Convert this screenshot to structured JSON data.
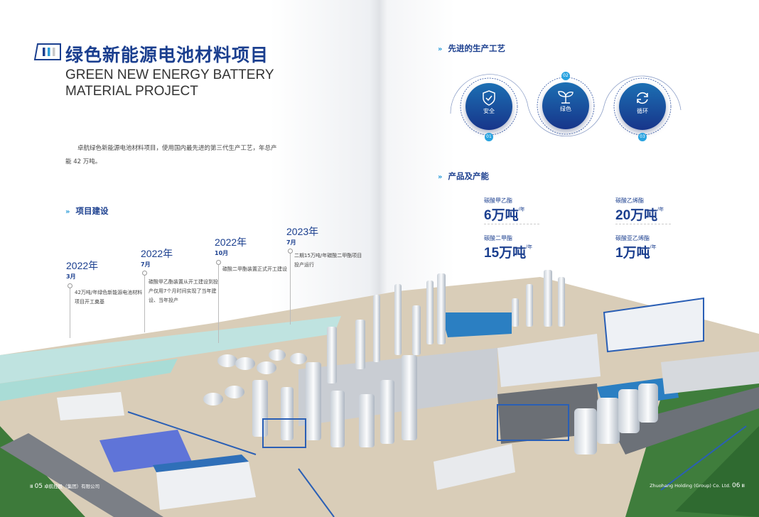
{
  "left_page": {
    "title_cn": "绿色新能源电池材料项目",
    "title_en_line1": "GREEN NEW ENERGY BATTERY",
    "title_en_line2": "MATERIAL PROJECT",
    "intro": "卓航绿色新能源电池材料项目，使用国内最先进的第三代生产工艺，年总产能 42 万吨。",
    "section_construction": "项目建设",
    "timeline": [
      {
        "year": "2022年",
        "month": "3月",
        "text": "42万吨/年绿色新能源电池材料项目开工奠基"
      },
      {
        "year": "2022年",
        "month": "7月",
        "text": "碳酸甲乙酯装置从开工建设到投产仅用7个月时间实现了当年建设、当年投产"
      },
      {
        "year": "2022年",
        "month": "10月",
        "text": "碳酸二甲酯装置正式开工建设"
      },
      {
        "year": "2023年",
        "month": "7月",
        "text": "二期15万吨/年碳酸二甲酯项目投产运行"
      }
    ],
    "footer_page": "05",
    "footer_company": "卓航控股（集团）有限公司"
  },
  "right_page": {
    "section_process": "先进的生产工艺",
    "process": [
      {
        "num": "01",
        "label": "安全",
        "icon": "shield-check-icon"
      },
      {
        "num": "02",
        "label": "绿色",
        "icon": "sprout-icon"
      },
      {
        "num": "03",
        "label": "循环",
        "icon": "recycle-arrows-icon"
      }
    ],
    "section_products": "产品及产能",
    "products": [
      {
        "name": "碳酸甲乙酯",
        "value": "6万吨",
        "unit": "/年"
      },
      {
        "name": "碳酸乙烯酯",
        "value": "20万吨",
        "unit": "/年"
      },
      {
        "name": "碳酸二甲酯",
        "value": "15万吨",
        "unit": "/年"
      },
      {
        "name": "碳酸亚乙烯酯",
        "value": "1万吨",
        "unit": "/年"
      }
    ],
    "footer_company": "Zhuohang Holding (Group) Co. Ltd.",
    "footer_page": "06"
  },
  "colors": {
    "brand_blue": "#1b3f8f",
    "accent_cyan": "#29a3e0"
  }
}
